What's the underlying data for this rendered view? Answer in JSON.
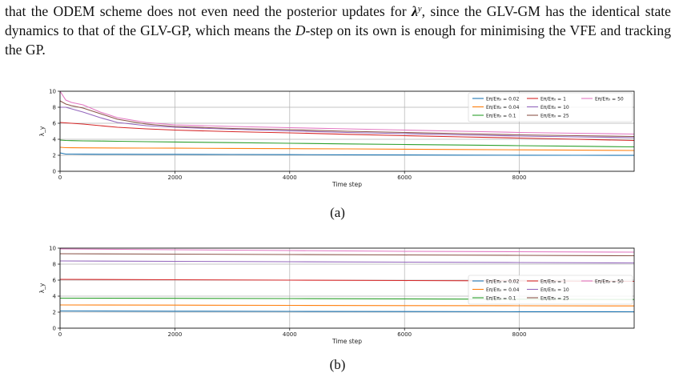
{
  "paragraph": {
    "before_lambda": "that the ODEM scheme does not even need the posterior updates for ",
    "lambda_symbol": "λ",
    "lambda_sup": "y",
    "after_lambda": ", since the GLV-GM has the identical state dynamics to that of the GLV-GP, which means the ",
    "d_step_letter": "D",
    "after_d": "-step on its own is enough for minimising the VFE and tracking the GP."
  },
  "captions": {
    "a": "(a)",
    "b": "(b)"
  },
  "chart_data": [
    {
      "panel": "(a)",
      "type": "line",
      "xlabel": "Time step",
      "ylabel": "λ_y",
      "xlim": [
        0,
        10000
      ],
      "ylim": [
        0,
        10
      ],
      "xticks": [
        0,
        2000,
        4000,
        6000,
        8000
      ],
      "yticks": [
        0,
        2,
        4,
        6,
        8,
        10
      ],
      "grid": true,
      "legend_position": "top-right",
      "x": [
        0,
        100,
        200,
        400,
        700,
        1000,
        1500,
        2000,
        3000,
        4000,
        5000,
        6000,
        7000,
        8000,
        9000,
        10000
      ],
      "series": [
        {
          "name": "Eπ/Eπ₀ = 0.02",
          "color": "#1f77b4",
          "values": [
            2.3,
            2.15,
            2.15,
            2.14,
            2.13,
            2.13,
            2.12,
            2.12,
            2.1,
            2.08,
            2.06,
            2.04,
            2.02,
            2.01,
            2.0,
            1.99
          ]
        },
        {
          "name": "Eπ/Eπ₀ = 0.04",
          "color": "#ff7f0e",
          "values": [
            3.0,
            2.95,
            2.94,
            2.93,
            2.92,
            2.91,
            2.9,
            2.89,
            2.86,
            2.83,
            2.8,
            2.76,
            2.72,
            2.68,
            2.64,
            2.6
          ]
        },
        {
          "name": "Eπ/Eπ₀ = 0.1",
          "color": "#2ca02c",
          "values": [
            3.9,
            3.85,
            3.83,
            3.8,
            3.78,
            3.75,
            3.7,
            3.66,
            3.58,
            3.5,
            3.42,
            3.35,
            3.28,
            3.2,
            3.13,
            3.05
          ]
        },
        {
          "name": "Eπ/Eπ₀ = 1",
          "color": "#d62728",
          "values": [
            6.1,
            6.05,
            6.0,
            5.9,
            5.7,
            5.5,
            5.3,
            5.15,
            4.95,
            4.8,
            4.62,
            4.45,
            4.3,
            4.15,
            4.0,
            3.85
          ]
        },
        {
          "name": "Eπ/Eπ₀ = 10",
          "color": "#9467bd",
          "values": [
            8.0,
            8.0,
            7.8,
            7.4,
            6.7,
            6.1,
            5.7,
            5.5,
            5.25,
            5.05,
            4.85,
            4.7,
            4.55,
            4.4,
            4.3,
            4.2
          ]
        },
        {
          "name": "Eπ/Eπ₀ = 25",
          "color": "#8c564b",
          "values": [
            8.8,
            8.4,
            8.2,
            7.9,
            7.2,
            6.5,
            5.9,
            5.6,
            5.35,
            5.2,
            5.0,
            4.85,
            4.7,
            4.55,
            4.45,
            4.35
          ]
        },
        {
          "name": "Eπ/Eπ₀ = 50",
          "color": "#e377c2",
          "values": [
            10.0,
            8.9,
            8.6,
            8.3,
            7.4,
            6.7,
            6.1,
            5.8,
            5.6,
            5.45,
            5.3,
            5.15,
            5.0,
            4.85,
            4.75,
            4.65
          ]
        }
      ]
    },
    {
      "panel": "(b)",
      "type": "line",
      "xlabel": "Time step",
      "ylabel": "λ_y",
      "xlim": [
        0,
        10000
      ],
      "ylim": [
        0,
        10
      ],
      "xticks": [
        0,
        2000,
        4000,
        6000,
        8000
      ],
      "yticks": [
        0,
        2,
        4,
        6,
        8,
        10
      ],
      "grid": true,
      "legend_position": "right",
      "x": [
        0,
        2000,
        4000,
        6000,
        8000,
        10000
      ],
      "series": [
        {
          "name": "Eπ/Eπ₀ = 0.02",
          "color": "#1f77b4",
          "values": [
            2.15,
            2.12,
            2.1,
            2.08,
            2.06,
            2.05
          ]
        },
        {
          "name": "Eπ/Eπ₀ = 0.04",
          "color": "#ff7f0e",
          "values": [
            2.9,
            2.88,
            2.85,
            2.82,
            2.8,
            2.78
          ]
        },
        {
          "name": "Eπ/Eπ₀ = 0.1",
          "color": "#2ca02c",
          "values": [
            3.75,
            3.73,
            3.7,
            3.66,
            3.62,
            3.58
          ]
        },
        {
          "name": "Eπ/Eπ₀ = 1",
          "color": "#d62728",
          "values": [
            6.1,
            6.05,
            6.0,
            5.95,
            5.9,
            5.85
          ]
        },
        {
          "name": "Eπ/Eπ₀ = 10",
          "color": "#9467bd",
          "values": [
            8.4,
            8.35,
            8.3,
            8.25,
            8.2,
            8.15
          ]
        },
        {
          "name": "Eπ/Eπ₀ = 25",
          "color": "#8c564b",
          "values": [
            9.3,
            9.25,
            9.2,
            9.15,
            9.1,
            9.05
          ]
        },
        {
          "name": "Eπ/Eπ₀ = 50",
          "color": "#e377c2",
          "values": [
            9.9,
            9.8,
            9.7,
            9.6,
            9.55,
            9.5
          ]
        }
      ]
    }
  ]
}
